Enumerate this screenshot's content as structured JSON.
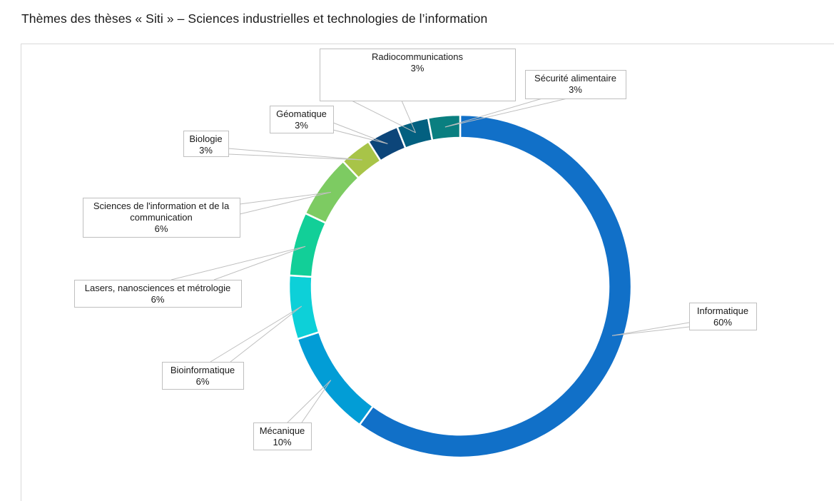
{
  "title": "Thèmes des thèses « Siti » – Sciences industrielles et technologies de l’information",
  "chart_data": {
    "type": "pie",
    "subtype": "donut",
    "title": "Thèmes des thèses « Siti » – Sciences industrielles et technologies de l’information",
    "start": "top, clockwise",
    "slices": [
      {
        "name": "Informatique",
        "value": 60,
        "label": "60%",
        "color": "#1170c8"
      },
      {
        "name": "Mécanique",
        "value": 10,
        "label": "10%",
        "color": "#029dd6"
      },
      {
        "name": "Bioinformatique",
        "value": 6,
        "label": "6%",
        "color": "#0dd0d8"
      },
      {
        "name": "Lasers, nanosciences et métrologie",
        "value": 6,
        "label": "6%",
        "color": "#12cf98"
      },
      {
        "name": "Sciences de l'information et de la communication",
        "value": 6,
        "label": "6%",
        "color": "#7dcb62"
      },
      {
        "name": "Biologie",
        "value": 3,
        "label": "3%",
        "color": "#a8c448"
      },
      {
        "name": "Géomatique",
        "value": 3,
        "label": "3%",
        "color": "#0c4579"
      },
      {
        "name": "Radiocommunications",
        "value": 3,
        "label": "3%",
        "color": "#036080"
      },
      {
        "name": "Sécurité alimentaire",
        "value": 3,
        "label": "3%",
        "color": "#0a7f80"
      }
    ]
  }
}
